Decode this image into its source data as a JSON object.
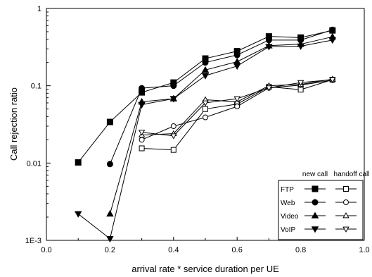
{
  "chart_data": {
    "type": "line",
    "title": "",
    "xlabel": "arrival rate * service duration per UE",
    "ylabel": "Call rejection ratio",
    "xlim": [
      0.0,
      1.0
    ],
    "ylim": [
      0.001,
      1
    ],
    "yscale": "log",
    "x_ticks": [
      0.0,
      0.2,
      0.4,
      0.6,
      0.8,
      1.0
    ],
    "x_tick_labels": [
      "0.0",
      "0.2",
      "0.4",
      "0.6",
      "0.8",
      "1.0"
    ],
    "y_ticks": [
      0.001,
      0.01,
      0.1,
      1
    ],
    "y_tick_labels": [
      "1E-3",
      "0.01",
      "0.1",
      "1"
    ],
    "legend": {
      "placement": "bottom-right",
      "column_headers": [
        "new call",
        "handoff call"
      ],
      "rows": [
        "FTP",
        "Web",
        "Video",
        "VoIP"
      ]
    },
    "series": [
      {
        "name": "FTP new call",
        "marker": "square",
        "filled": true,
        "x": [
          0.1,
          0.2,
          0.3,
          0.4,
          0.5,
          0.6,
          0.7,
          0.8,
          0.9
        ],
        "y": [
          0.0102,
          0.034,
          0.082,
          0.11,
          0.225,
          0.28,
          0.435,
          0.42,
          0.52
        ]
      },
      {
        "name": "Web new call",
        "marker": "circle",
        "filled": true,
        "x": [
          0.2,
          0.3,
          0.4,
          0.5,
          0.6,
          0.7,
          0.8,
          0.9
        ],
        "y": [
          0.0097,
          0.093,
          0.1,
          0.2,
          0.25,
          0.39,
          0.39,
          0.53
        ]
      },
      {
        "name": "Video new call",
        "marker": "triangle-up",
        "filled": true,
        "x": [
          0.2,
          0.3,
          0.4,
          0.5,
          0.6,
          0.7,
          0.8,
          0.9
        ],
        "y": [
          0.0022,
          0.062,
          0.068,
          0.16,
          0.205,
          0.33,
          0.345,
          0.43
        ]
      },
      {
        "name": "VoIP new call",
        "marker": "triangle-down",
        "filled": true,
        "x": [
          0.1,
          0.2,
          0.3,
          0.4,
          0.5,
          0.6,
          0.7,
          0.8,
          0.9
        ],
        "y": [
          0.0022,
          0.00105,
          0.057,
          0.068,
          0.135,
          0.18,
          0.32,
          0.325,
          0.39
        ]
      },
      {
        "name": "FTP handoff call",
        "marker": "square",
        "filled": false,
        "x": [
          0.3,
          0.4,
          0.5,
          0.6,
          0.7,
          0.8,
          0.9
        ],
        "y": [
          0.0155,
          0.0148,
          0.05,
          0.058,
          0.097,
          0.089,
          0.12
        ]
      },
      {
        "name": "Web handoff call",
        "marker": "circle",
        "filled": false,
        "x": [
          0.3,
          0.4,
          0.5,
          0.6,
          0.7,
          0.8,
          0.9
        ],
        "y": [
          0.02,
          0.03,
          0.039,
          0.054,
          0.094,
          0.102,
          0.118
        ]
      },
      {
        "name": "Video handoff call",
        "marker": "triangle-up",
        "filled": false,
        "x": [
          0.3,
          0.4,
          0.5,
          0.6,
          0.7,
          0.8,
          0.9
        ],
        "y": [
          0.023,
          0.024,
          0.066,
          0.062,
          0.1,
          0.104,
          0.122
        ]
      },
      {
        "name": "VoIP handoff call",
        "marker": "triangle-down",
        "filled": false,
        "x": [
          0.3,
          0.4,
          0.5,
          0.6,
          0.7,
          0.8,
          0.9
        ],
        "y": [
          0.025,
          0.0225,
          0.06,
          0.068,
          0.094,
          0.11,
          0.12
        ]
      }
    ]
  }
}
